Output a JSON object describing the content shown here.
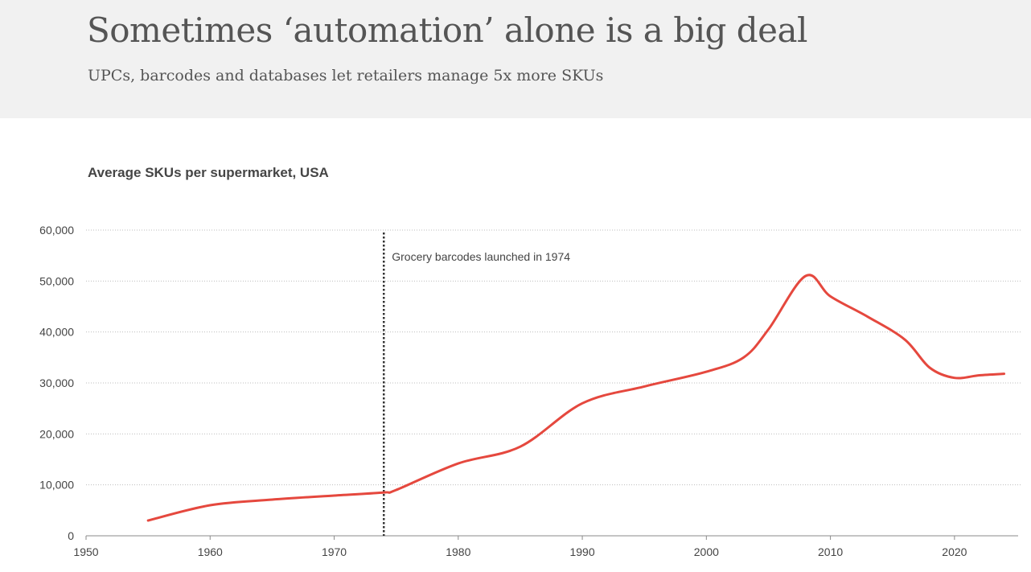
{
  "header": {
    "title": "Sometimes ‘automation’ alone is a big deal",
    "subtitle": "UPCs, barcodes and databases let retailers manage 5x more SKUs"
  },
  "chart_data": {
    "type": "line",
    "title": "Average SKUs per supermarket, USA",
    "xlabel": "",
    "ylabel": "",
    "xlim": [
      1950,
      2025
    ],
    "ylim": [
      0,
      60000
    ],
    "x_ticks": [
      1950,
      1960,
      1970,
      1980,
      1990,
      2000,
      2010,
      2020
    ],
    "y_ticks": [
      0,
      10000,
      20000,
      30000,
      40000,
      50000,
      60000
    ],
    "y_tick_labels": [
      "0",
      "10,000",
      "20,000",
      "30,000",
      "40,000",
      "50,000",
      "60,000"
    ],
    "grid": "horizontal-dotted",
    "line_color": "#e5483e",
    "series": [
      {
        "name": "Average SKUs per supermarket",
        "x": [
          1955,
          1960,
          1965,
          1970,
          1974,
          1975,
          1980,
          1985,
          1990,
          1995,
          2000,
          2003,
          2005,
          2008,
          2010,
          2013,
          2016,
          2018,
          2020,
          2022,
          2024
        ],
        "values": [
          3000,
          6000,
          7100,
          7900,
          8500,
          9000,
          14200,
          17500,
          26000,
          29300,
          32200,
          35000,
          40500,
          51000,
          47000,
          43000,
          38500,
          33000,
          31000,
          31500,
          31800
        ]
      }
    ],
    "annotation": {
      "x": 1974,
      "text": "Grocery barcodes launched in 1974"
    }
  }
}
